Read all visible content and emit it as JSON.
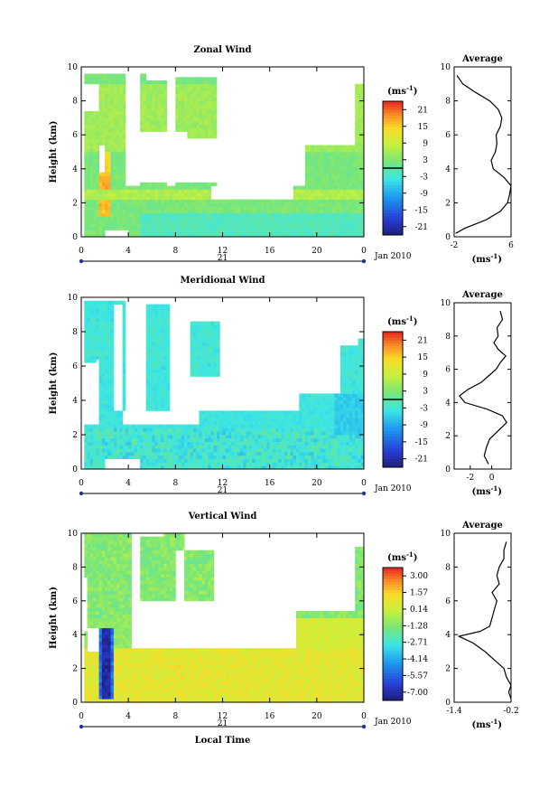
{
  "chart_data": [
    {
      "type": "heatmap",
      "title": "Zonal Wind",
      "ylabel": "Height (km)",
      "ylim": [
        0,
        10
      ],
      "yticks": [
        "0",
        "2",
        "4",
        "6",
        "8",
        "10"
      ],
      "xlim": [
        0,
        24
      ],
      "xticks": [
        "0",
        "4",
        "8",
        "12",
        "16",
        "20",
        "0"
      ],
      "date_label": "21",
      "date_right": "Jan 2010",
      "colorbar": {
        "unit_label": "(ms",
        "unit_exp": "-1",
        "unit_close": ")",
        "tick_labels": [
          "21",
          "15",
          "9",
          "3",
          "-3",
          "-9",
          "-15",
          "-21"
        ],
        "range": [
          -24,
          24
        ],
        "zero_line": 0
      },
      "profile": {
        "title": "Average",
        "xticks": [
          "-2",
          "6"
        ],
        "xlim": [
          -2,
          6
        ],
        "yticks": [
          "0",
          "2",
          "4",
          "6",
          "8",
          "10"
        ],
        "xlabel": "(ms",
        "xlabel_exp": "-1",
        "xlabel_close": ")",
        "height": [
          0.2,
          0.5,
          1,
          1.5,
          2,
          2.5,
          3,
          3.5,
          4,
          4.5,
          5,
          5.5,
          6,
          6.5,
          7,
          7.5,
          8,
          8.5,
          9,
          9.5
        ],
        "value": [
          -1.8,
          -0.5,
          2.5,
          4.5,
          5.5,
          5.8,
          6.0,
          5.0,
          3.5,
          3.2,
          3.8,
          4.0,
          3.9,
          4.5,
          4.7,
          4.2,
          3.0,
          1.0,
          -0.8,
          -1.6
        ]
      }
    },
    {
      "type": "heatmap",
      "title": "Meridional Wind",
      "ylabel": "Height (km)",
      "ylim": [
        0,
        10
      ],
      "yticks": [
        "0",
        "2",
        "4",
        "6",
        "8",
        "10"
      ],
      "xlim": [
        0,
        24
      ],
      "xticks": [
        "0",
        "4",
        "8",
        "12",
        "16",
        "20",
        "0"
      ],
      "date_label": "21",
      "date_right": "Jan 2010",
      "colorbar": {
        "unit_label": "(ms",
        "unit_exp": "-1",
        "unit_close": ")",
        "tick_labels": [
          "21",
          "15",
          "9",
          "3",
          "-3",
          "-9",
          "-15",
          "-21"
        ],
        "range": [
          -24,
          24
        ],
        "zero_line": 0
      },
      "profile": {
        "title": "Average",
        "xticks": [
          "-2",
          "0"
        ],
        "xlim": [
          -3.5,
          1.8
        ],
        "yticks": [
          "0",
          "2",
          "4",
          "6",
          "8",
          "10"
        ],
        "xlabel": "(ms",
        "xlabel_exp": "-1",
        "xlabel_close": ")",
        "height": [
          0.3,
          0.8,
          1.3,
          1.8,
          2.3,
          2.8,
          3.2,
          3.6,
          4.0,
          4.4,
          4.8,
          5.2,
          5.6,
          6.0,
          6.4,
          6.8,
          7.2,
          7.6,
          8.0,
          8.5,
          9.0,
          9.5
        ],
        "value": [
          -0.3,
          -0.7,
          -0.5,
          -0.2,
          0.6,
          1.4,
          1.0,
          -0.4,
          -2.5,
          -3.0,
          -2.2,
          -1.0,
          -0.3,
          0.4,
          0.8,
          1.3,
          0.6,
          0.2,
          0.6,
          0.5,
          1.0,
          0.8
        ]
      }
    },
    {
      "type": "heatmap",
      "title": "Vertical Wind",
      "ylabel": "Height (km)",
      "ylim": [
        0,
        10
      ],
      "yticks": [
        "0",
        "2",
        "4",
        "6",
        "8",
        "10"
      ],
      "xlim": [
        0,
        24
      ],
      "xticks": [
        "0",
        "4",
        "8",
        "12",
        "16",
        "20",
        "0"
      ],
      "date_label": "21",
      "date_right": "Jan 2010",
      "xlabel": "Local Time",
      "colorbar": {
        "unit_label": "(ms",
        "unit_exp": "-1",
        "unit_close": ")",
        "tick_labels": [
          "3.00",
          "1.57",
          "0.14",
          "-1.28",
          "-2.71",
          "-4.14",
          "-5.57",
          "-7.00"
        ],
        "range": [
          -7.7,
          3.7
        ]
      },
      "profile": {
        "title": "Average",
        "xticks": [
          "-1.4",
          "-0.2"
        ],
        "xlim": [
          -1.4,
          -0.2
        ],
        "yticks": [
          "0",
          "2",
          "4",
          "6",
          "8",
          "10"
        ],
        "xlabel": "(ms",
        "xlabel_exp": "-1",
        "xlabel_close": ")",
        "height": [
          0.2,
          0.6,
          1.0,
          1.5,
          2.0,
          2.5,
          3.0,
          3.5,
          3.9,
          4.2,
          4.5,
          5.0,
          5.5,
          6.0,
          6.5,
          7.0,
          7.5,
          8.0,
          8.5,
          9.0,
          9.5
        ],
        "value": [
          -0.2,
          -0.25,
          -0.2,
          -0.3,
          -0.35,
          -0.55,
          -0.75,
          -1.0,
          -1.3,
          -0.85,
          -0.65,
          -0.6,
          -0.55,
          -0.5,
          -0.6,
          -0.45,
          -0.5,
          -0.45,
          -0.35,
          -0.35,
          -0.3
        ]
      }
    }
  ]
}
